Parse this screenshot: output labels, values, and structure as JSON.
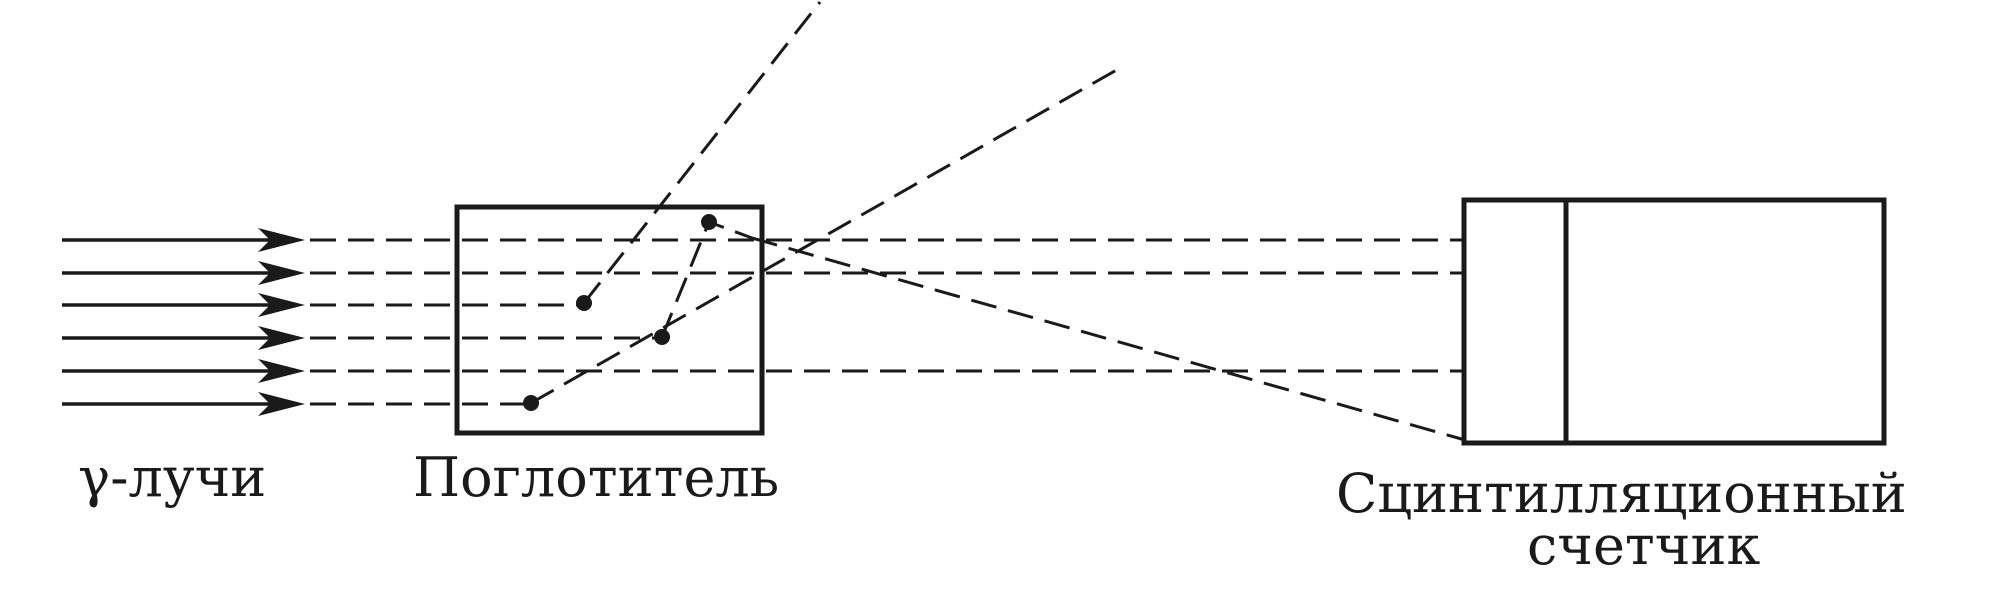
{
  "labels": {
    "rays": "γ-лучи",
    "absorber": "Поглотитель",
    "detector_line1": "Сцинтилляционный",
    "detector_line2": "счетчик"
  },
  "colors": {
    "ink": "#1a1a1a",
    "background": "#ffffff"
  }
}
